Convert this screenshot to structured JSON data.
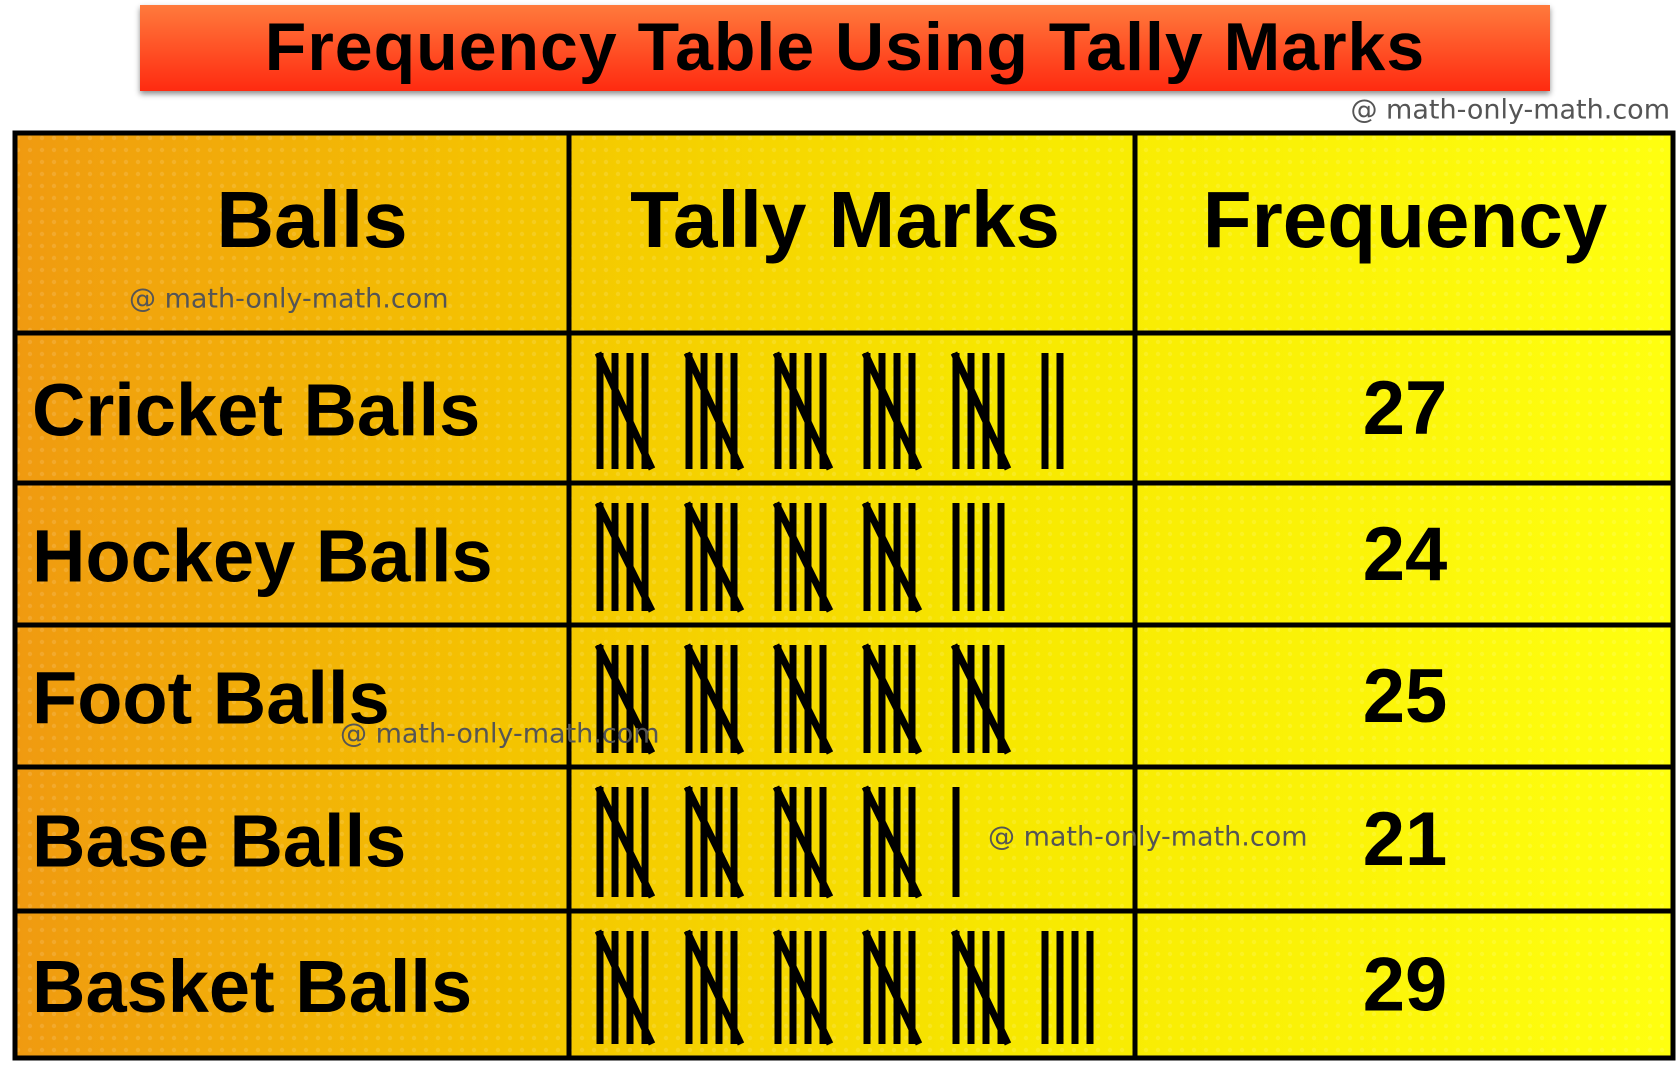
{
  "title": "Frequency Table Using Tally Marks",
  "watermarks": [
    "@ math-only-math.com",
    "@ math-only-math.com",
    "@ math-only-math.com",
    "@ math-only-math.com"
  ],
  "table": {
    "header": [
      "Balls",
      "Tally Marks",
      "Frequency"
    ],
    "rows": [
      [
        "Cricket Balls",
        27
      ],
      [
        "Hockey Balls",
        24
      ],
      [
        "Foot Balls",
        25
      ],
      [
        "Base Balls",
        21
      ],
      [
        "Basket Balls",
        29
      ]
    ]
  }
}
